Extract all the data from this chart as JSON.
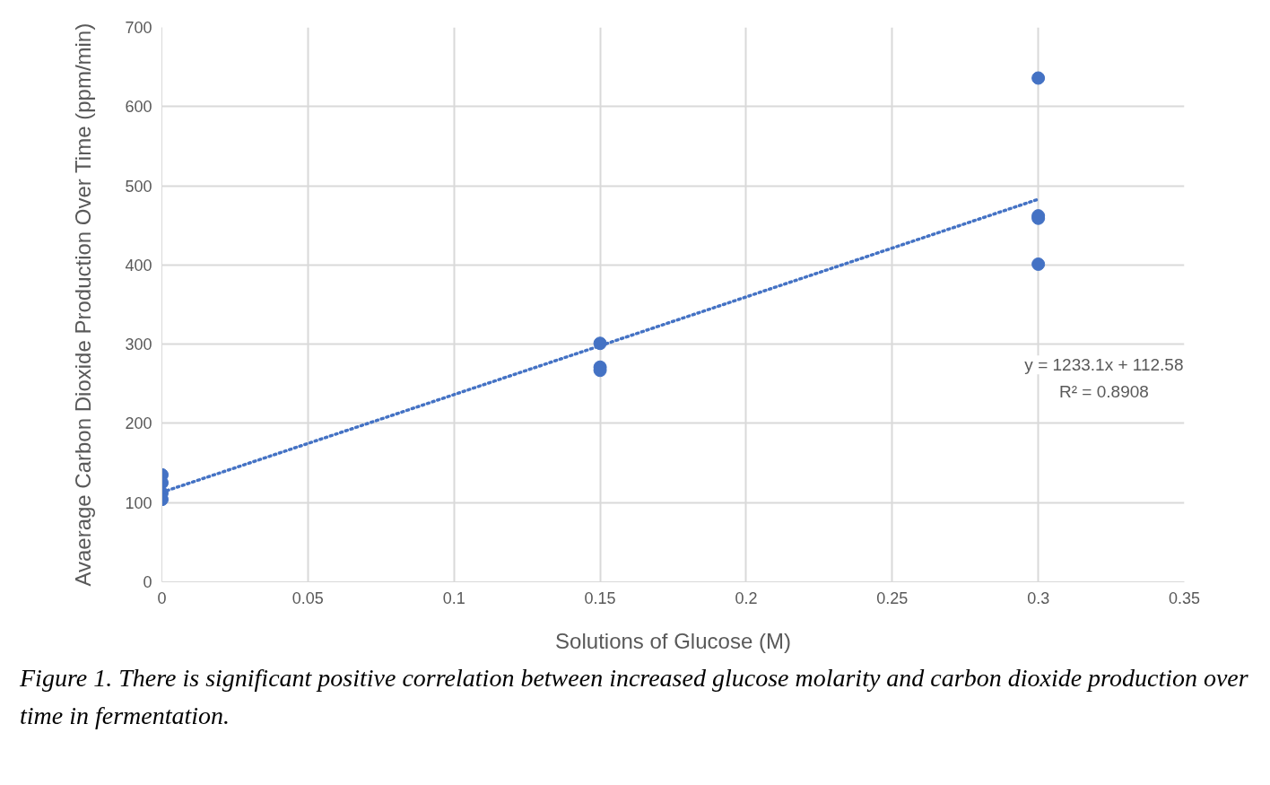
{
  "chart_data": {
    "type": "scatter",
    "xlabel": "Solutions of Glucose (M)",
    "ylabel": "Avaerage Carbon Dioxide Production Over Time (ppm/min)",
    "xlim": [
      0,
      0.35
    ],
    "xticks": [
      0,
      0.05,
      0.1,
      0.15,
      0.2,
      0.25,
      0.3,
      0.35
    ],
    "ylim": [
      0,
      700
    ],
    "yticks": [
      0,
      100,
      200,
      300,
      400,
      500,
      600,
      700
    ],
    "grid": true,
    "series": [
      {
        "marker": "circle",
        "color": "#4472c4",
        "x": [
          0,
          0,
          0,
          0,
          0.15,
          0.15,
          0.15,
          0.3,
          0.3,
          0.3,
          0.3
        ],
        "values": [
          135,
          125,
          112,
          104,
          301,
          271,
          267,
          636,
          462,
          459,
          401
        ]
      },
      {
        "type": "line",
        "color": "#4472c4",
        "line_style": "dotted",
        "x": [
          0,
          0.3
        ],
        "values": [
          113,
          483
        ]
      }
    ],
    "annotations": [
      "y = 1233.1x + 112.58",
      "R² = 0.8908",
      "Figure 1. There is significant positive correlation between increased glucose molarity and carbon dioxide production over time in fermentation."
    ]
  }
}
